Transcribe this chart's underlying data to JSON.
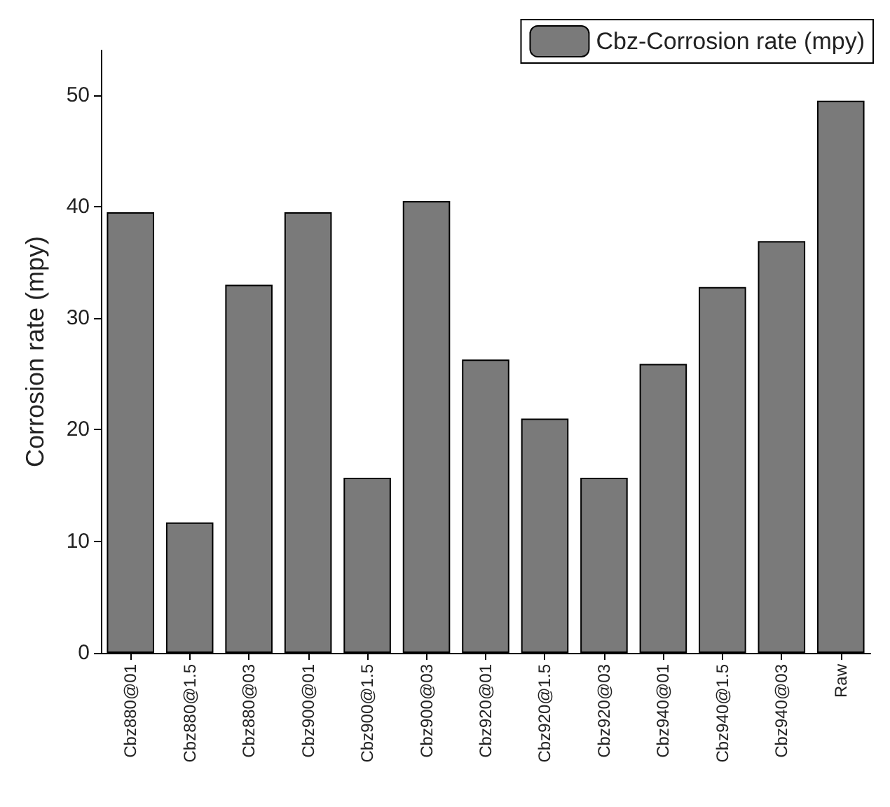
{
  "chart_data": {
    "type": "bar",
    "ylabel": "Corrosion rate (mpy)",
    "categories": [
      "Cbz880@01",
      "Cbz880@1.5",
      "Cbz880@03",
      "Cbz900@01",
      "Cbz900@1.5",
      "Cbz900@03",
      "Cbz920@01",
      "Cbz920@1.5",
      "Cbz920@03",
      "Cbz940@01",
      "Cbz940@1.5",
      "Cbz940@03",
      "Raw"
    ],
    "series": [
      {
        "name": "Cbz-Corrosion rate (mpy)",
        "color": "#7a7a7a",
        "values": [
          39.5,
          11.7,
          33.0,
          39.5,
          15.7,
          40.5,
          26.3,
          21.0,
          15.7,
          25.9,
          32.8,
          36.9,
          49.5
        ]
      }
    ],
    "ylim": [
      0,
      54
    ],
    "yticks": [
      0,
      10,
      20,
      30,
      40,
      50
    ],
    "grid": false,
    "legend": "top right"
  }
}
